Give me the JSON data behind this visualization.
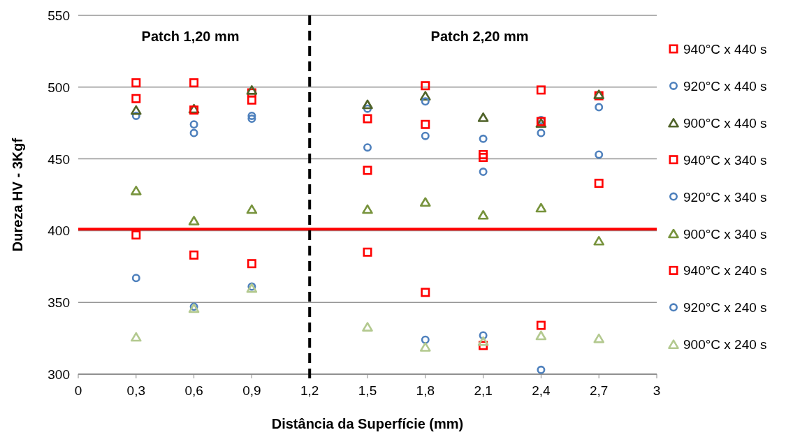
{
  "chart_data": {
    "type": "scatter",
    "xlabel": "Distância da Superfície (mm)",
    "ylabel": "Dureza HV - 3Kgf",
    "x": [
      0.3,
      0.6,
      0.9,
      1.5,
      1.8,
      2.1,
      2.4,
      2.7
    ],
    "xlim": [
      0,
      3
    ],
    "xticks": [
      0,
      {
        "value": 0.3,
        "label": "0,3"
      },
      {
        "value": 0.6,
        "label": "0,6"
      },
      {
        "value": 0.9,
        "label": "0,9"
      },
      {
        "value": 1.2,
        "label": "1,2"
      },
      {
        "value": 1.5,
        "label": "1,5"
      },
      {
        "value": 1.8,
        "label": "1,8"
      },
      {
        "value": 2.1,
        "label": "2,1"
      },
      {
        "value": 2.4,
        "label": "2,4"
      },
      {
        "value": 2.7,
        "label": "2,7"
      },
      3
    ],
    "ylim": [
      300,
      550
    ],
    "yticks": [
      300,
      350,
      400,
      450,
      500,
      550
    ],
    "grid": "y",
    "legend": "right",
    "series": [
      {
        "name": "940°C x 440 s",
        "color": "#ff0000",
        "marker": "square",
        "values": [
          503,
          503,
          496,
          478,
          501,
          453,
          498,
          494
        ]
      },
      {
        "name": "920°C x 440 s",
        "color": "#4f81bd",
        "marker": "circle",
        "values": [
          480,
          468,
          480,
          485,
          466,
          464,
          477,
          486
        ]
      },
      {
        "name": "900°C x 440 s",
        "color": "#4f6228",
        "marker": "triangle",
        "values": [
          484,
          485,
          498,
          488,
          494,
          479,
          475,
          495
        ]
      },
      {
        "name": "940°C x 340 s",
        "color": "#ff0000",
        "marker": "square",
        "values": [
          492,
          484,
          491,
          442,
          474,
          451,
          476,
          433
        ]
      },
      {
        "name": "920°C x 340 s",
        "color": "#4f81bd",
        "marker": "circle",
        "values": [
          null,
          474,
          478,
          458,
          490,
          441,
          468,
          453
        ]
      },
      {
        "name": "900°C x 340 s",
        "color": "#77933c",
        "marker": "triangle",
        "values": [
          428,
          407,
          415,
          415,
          420,
          411,
          416,
          393
        ]
      },
      {
        "name": "940°C x 240 s",
        "color": "#ff0000",
        "marker": "square",
        "values": [
          397,
          383,
          377,
          385,
          357,
          320,
          334,
          null
        ]
      },
      {
        "name": "920°C x 240 s",
        "color": "#4f81bd",
        "marker": "circle",
        "values": [
          367,
          347,
          361,
          null,
          324,
          327,
          303,
          null
        ]
      },
      {
        "name": "900°C x 240 s",
        "color": "#b3c98f",
        "marker": "triangle",
        "values": [
          326,
          346,
          360,
          333,
          319,
          323,
          327,
          325
        ]
      }
    ],
    "ref_lines": [
      {
        "axis": "y",
        "value": 401,
        "color": "#ff0000",
        "line_style": "solid"
      },
      {
        "axis": "x",
        "value": 1.2,
        "color": "#000000",
        "line_style": "dashed"
      }
    ],
    "annotations": [
      "Patch 1,20 mm",
      "Patch 2,20 mm"
    ]
  }
}
